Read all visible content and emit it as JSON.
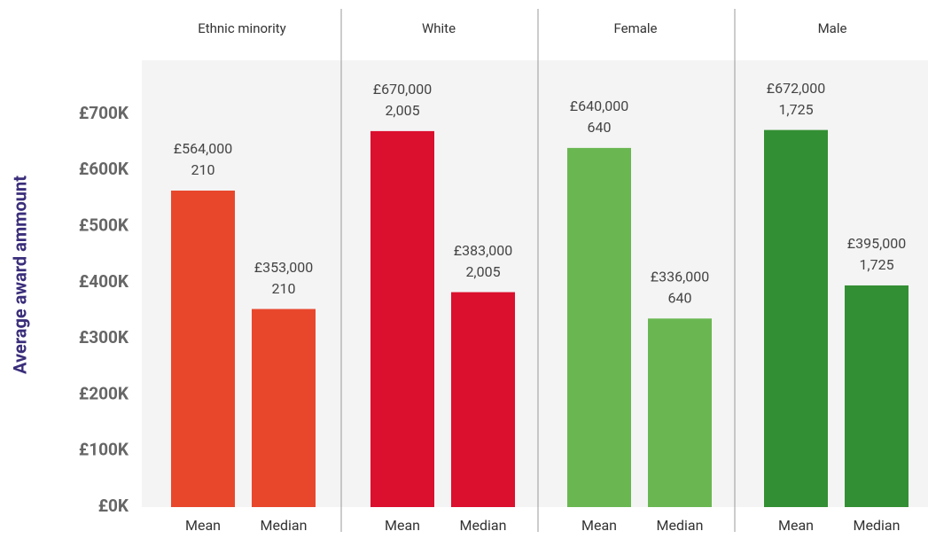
{
  "chart_data": {
    "type": "bar",
    "ylabel": "Average award ammount",
    "categories": [
      "Mean",
      "Median"
    ],
    "series": [
      {
        "name": "Ethnic minority",
        "color": "#e8472c",
        "values": [
          564000,
          353000
        ],
        "value_labels": [
          "£564,000",
          "£353,000"
        ],
        "counts": [
          "210",
          "210"
        ]
      },
      {
        "name": "White",
        "color": "#db0f2e",
        "values": [
          670000,
          383000
        ],
        "value_labels": [
          "£670,000",
          "£383,000"
        ],
        "counts": [
          "2,005",
          "2,005"
        ]
      },
      {
        "name": "Female",
        "color": "#6ab752",
        "values": [
          640000,
          336000
        ],
        "value_labels": [
          "£640,000",
          "£336,000"
        ],
        "counts": [
          "640",
          "640"
        ]
      },
      {
        "name": "Male",
        "color": "#338f33",
        "values": [
          672000,
          395000
        ],
        "value_labels": [
          "£672,000",
          "£395,000"
        ],
        "counts": [
          "1,725",
          "1,725"
        ]
      }
    ],
    "ylim": [
      0,
      800000
    ],
    "yticks": [
      {
        "value": 0,
        "label": "£0K"
      },
      {
        "value": 100000,
        "label": "£100K"
      },
      {
        "value": 200000,
        "label": "£200K"
      },
      {
        "value": 300000,
        "label": "£300K"
      },
      {
        "value": 400000,
        "label": "£400K"
      },
      {
        "value": 500000,
        "label": "£500K"
      },
      {
        "value": 600000,
        "label": "£600K"
      },
      {
        "value": 700000,
        "label": "£700K"
      }
    ]
  }
}
